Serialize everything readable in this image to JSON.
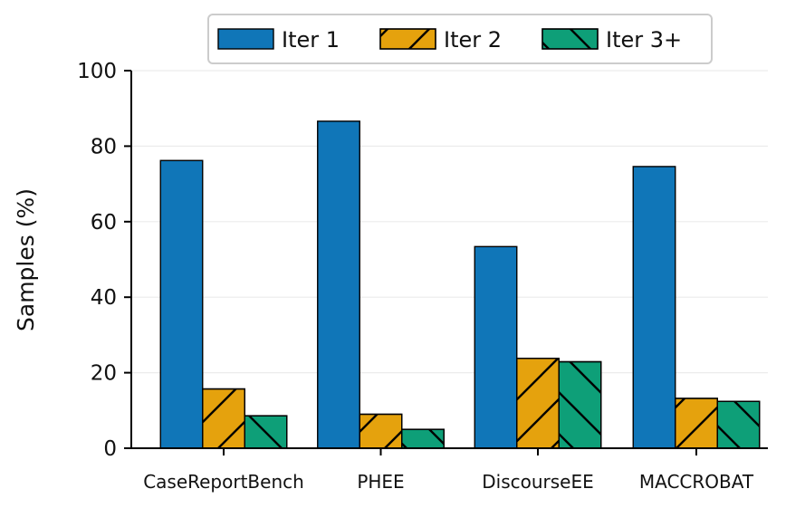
{
  "chart_data": {
    "type": "bar",
    "title": "",
    "xlabel": "",
    "ylabel": "Samples (%)",
    "ylim": [
      0,
      100
    ],
    "yticks": [
      0,
      20,
      40,
      60,
      80,
      100
    ],
    "grid": "horizontal, light",
    "legend_position": "top-center",
    "categories": [
      "CaseReportBench",
      "PHEE",
      "DiscourseEE",
      "MACCROBAT"
    ],
    "series": [
      {
        "name": "Iter 1",
        "values": [
          76.2,
          86.6,
          53.4,
          74.6
        ],
        "color": "#1076b8",
        "hatch": "none"
      },
      {
        "name": "Iter 2",
        "values": [
          15.7,
          9.0,
          23.8,
          13.2
        ],
        "color": "#e5a20d",
        "hatch": "forward-diagonal"
      },
      {
        "name": "Iter 3+",
        "values": [
          8.6,
          5.0,
          22.9,
          12.4
        ],
        "color": "#0e9f78",
        "hatch": "back-diagonal"
      }
    ]
  }
}
